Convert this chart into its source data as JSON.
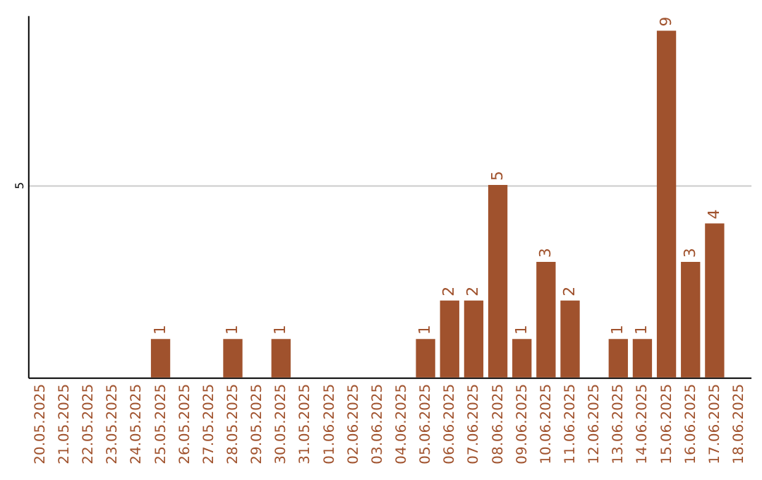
{
  "chart_data": {
    "type": "bar",
    "categories": [
      "20.05.2025",
      "21.05.2025",
      "22.05.2025",
      "23.05.2025",
      "24.05.2025",
      "25.05.2025",
      "26.05.2025",
      "27.05.2025",
      "28.05.2025",
      "29.05.2025",
      "30.05.2025",
      "31.05.2025",
      "01.06.2025",
      "02.06.2025",
      "03.06.2025",
      "04.06.2025",
      "05.06.2025",
      "06.06.2025",
      "07.06.2025",
      "08.06.2025",
      "09.06.2025",
      "10.06.2025",
      "11.06.2025",
      "12.06.2025",
      "13.06.2025",
      "14.06.2025",
      "15.06.2025",
      "16.06.2025",
      "17.06.2025",
      "18.06.2025"
    ],
    "values": [
      0,
      0,
      0,
      0,
      0,
      1,
      0,
      0,
      1,
      0,
      1,
      0,
      0,
      0,
      0,
      0,
      1,
      2,
      2,
      5,
      1,
      3,
      2,
      0,
      1,
      1,
      9,
      3,
      4,
      0
    ],
    "value_labels": [
      null,
      null,
      null,
      null,
      null,
      "1",
      null,
      null,
      "1",
      null,
      "1",
      null,
      null,
      null,
      null,
      null,
      "1",
      "2",
      "2",
      "5",
      "1",
      "3",
      "2",
      null,
      "1",
      "1",
      "9",
      "3",
      "4",
      null
    ],
    "color": "#a0522d",
    "ylim": [
      0,
      9.4
    ],
    "yticks": [
      5
    ],
    "grid": "y"
  }
}
